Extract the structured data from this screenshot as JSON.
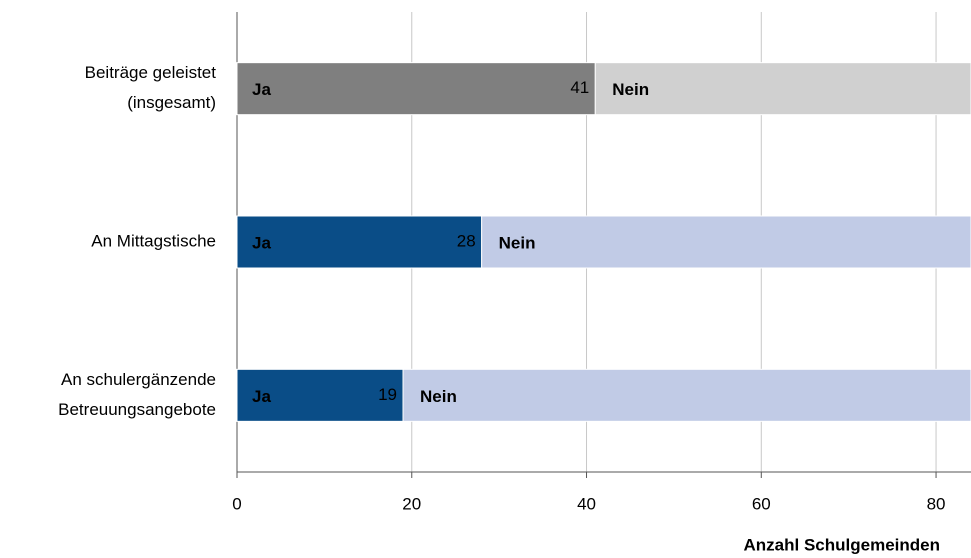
{
  "chart_data": {
    "type": "stacked-barh",
    "categories": [
      [
        "Beiträge geleistet",
        "(insgesamt)"
      ],
      [
        "An Mittagstische"
      ],
      [
        "An schulergänzende",
        "Betreuungsangebote"
      ]
    ],
    "series": [
      {
        "name": "Ja",
        "colors": [
          "#7f7f7f",
          "#0a4d87",
          "#0a4d87"
        ],
        "values": [
          41,
          28,
          19
        ]
      },
      {
        "name": "Nein",
        "colors": [
          "#d0d0d0",
          "#c1cbe6",
          "#c1cbe6"
        ],
        "values": [
          43,
          56,
          65
        ]
      }
    ],
    "xlim": [
      0,
      84
    ],
    "xticks": [
      0,
      20,
      40,
      60,
      80
    ],
    "xlabel": "Anzahl Schulgemeinden",
    "grid": true
  }
}
